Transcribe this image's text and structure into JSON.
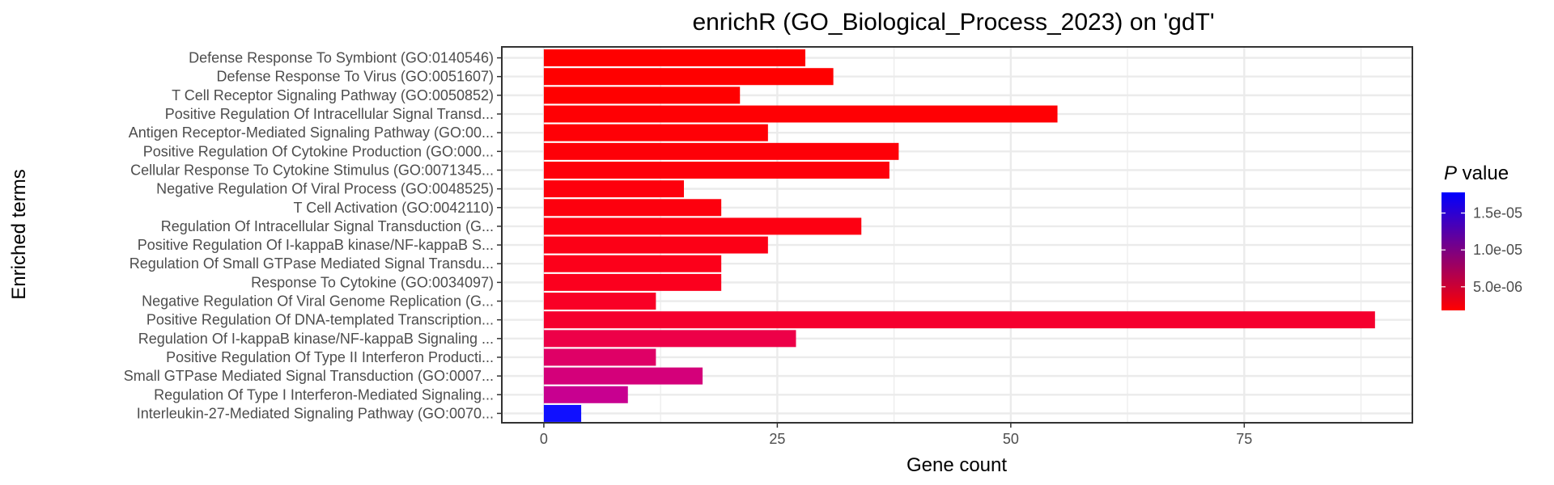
{
  "chart_data": {
    "type": "bar",
    "orientation": "horizontal",
    "title": "enrichR (GO_Biological_Process_2023) on 'gdT'",
    "xlabel": "Gene count",
    "ylabel": "Enriched terms",
    "xlim": [
      -4.5,
      93
    ],
    "x_ticks": [
      0,
      25,
      50,
      75
    ],
    "x_tick_labels": [
      "0",
      "25",
      "50",
      "75"
    ],
    "grid": true,
    "categories": [
      "Defense Response To Symbiont (GO:0140546)",
      "Defense Response To Virus (GO:0051607)",
      "T Cell Receptor Signaling Pathway (GO:0050852)",
      "Positive Regulation Of Intracellular Signal Transd...",
      "Antigen Receptor-Mediated Signaling Pathway (GO:00...",
      "Positive Regulation Of Cytokine Production (GO:000...",
      "Cellular Response To Cytokine Stimulus (GO:0071345...",
      "Negative Regulation Of Viral Process (GO:0048525)",
      "T Cell Activation (GO:0042110)",
      "Regulation Of Intracellular Signal Transduction (G...",
      "Positive Regulation Of I-kappaB kinase/NF-kappaB S...",
      "Regulation Of Small GTPase Mediated Signal Transdu...",
      "Response To Cytokine (GO:0034097)",
      "Negative Regulation Of Viral Genome Replication (G...",
      "Positive Regulation Of DNA-templated Transcription...",
      "Regulation Of I-kappaB kinase/NF-kappaB Signaling ...",
      "Positive Regulation Of Type II Interferon Producti...",
      "Small GTPase Mediated Signal Transduction (GO:0007...",
      "Regulation Of Type I Interferon-Mediated Signaling...",
      "Interleukin-27-Mediated Signaling Pathway (GO:0070..."
    ],
    "values": [
      28,
      31,
      21,
      55,
      24,
      38,
      37,
      15,
      19,
      34,
      24,
      19,
      19,
      12,
      89,
      27,
      12,
      17,
      9,
      4
    ],
    "bar_colors": [
      "#ff0000",
      "#ff0000",
      "#ff0000",
      "#ff0004",
      "#ff0006",
      "#fe0008",
      "#fe000a",
      "#fe000c",
      "#fd000e",
      "#fd0012",
      "#fc0016",
      "#fc001a",
      "#fb001e",
      "#f90026",
      "#f5002e",
      "#ed0048",
      "#df0066",
      "#d4007a",
      "#c80090",
      "#1010ff"
    ],
    "legend": {
      "title_italic": "P",
      "title_rest": " value",
      "position": "right",
      "tick_values": [
        1.5e-05,
        1e-05,
        5e-06
      ],
      "tick_labels": [
        "1.5e-05",
        "1.0e-05",
        "5.0e-06"
      ],
      "range": [
        1.8e-06,
        1.78e-05
      ],
      "color_low": "#ff0000",
      "color_high": "#0000ff"
    }
  }
}
